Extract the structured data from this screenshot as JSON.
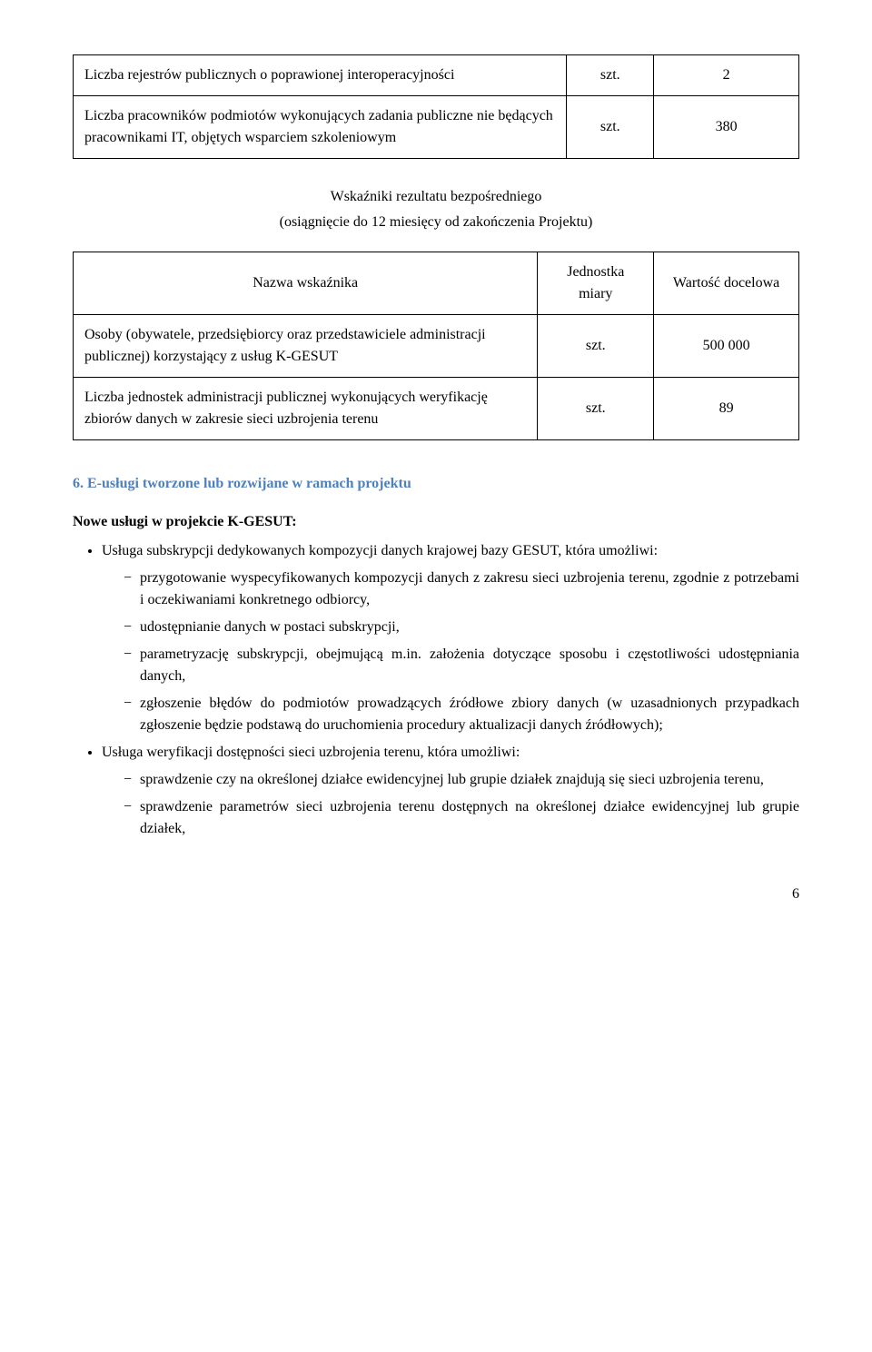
{
  "table1": {
    "rows": [
      {
        "label": "Liczba rejestrów publicznych o poprawionej interoperacyjności",
        "unit": "szt.",
        "value": "2"
      },
      {
        "label": "Liczba pracowników podmiotów wykonujących zadania publiczne nie będących pracownikami IT, objętych wsparciem szkoleniowym",
        "unit": "szt.",
        "value": "380"
      }
    ],
    "col_widths": [
      "68%",
      "12%",
      "20%"
    ]
  },
  "midTitle1": "Wskaźniki rezultatu bezpośredniego",
  "midTitle2": "(osiągnięcie do 12 miesięcy od zakończenia Projektu)",
  "table2": {
    "header": {
      "name": "Nazwa wskaźnika",
      "unit": "Jednostka miary",
      "value": "Wartość docelowa"
    },
    "rows": [
      {
        "label": "Osoby (obywatele, przedsiębiorcy oraz przedstawiciele administracji publicznej) korzystający z usług K-GESUT",
        "unit": "szt.",
        "value": "500 000"
      },
      {
        "label": "Liczba jednostek administracji publicznej wykonujących weryfikację zbiorów danych w zakresie sieci uzbrojenia terenu",
        "unit": "szt.",
        "value": "89"
      }
    ],
    "col_widths": [
      "64%",
      "16%",
      "20%"
    ]
  },
  "sectionHeading": "6. E-usługi tworzone lub rozwijane w ramach projektu",
  "introLine": "Nowe usługi w projekcie K-GESUT:",
  "bullets": [
    {
      "text": "Usługa subskrypcji dedykowanych kompozycji danych krajowej bazy GESUT, która umożliwi:",
      "children": [
        "przygotowanie wyspecyfikowanych kompozycji danych z zakresu sieci uzbrojenia terenu, zgodnie z potrzebami i oczekiwaniami konkretnego odbiorcy,",
        "udostępnianie danych w postaci subskrypcji,",
        "parametryzację subskrypcji, obejmującą m.in. założenia dotyczące sposobu i częstotliwości udostępniania danych,",
        "zgłoszenie błędów do podmiotów prowadzących źródłowe zbiory danych (w uzasadnionych przypadkach zgłoszenie będzie podstawą do uruchomienia procedury aktualizacji danych źródłowych);"
      ]
    },
    {
      "text": "Usługa weryfikacji dostępności sieci uzbrojenia terenu, która umożliwi:",
      "children": [
        "sprawdzenie czy na określonej działce ewidencyjnej lub grupie działek znajdują się sieci uzbrojenia terenu,",
        "sprawdzenie parametrów sieci uzbrojenia terenu dostępnych na określonej działce ewidencyjnej lub grupie działek,"
      ]
    }
  ],
  "pageNumber": "6"
}
